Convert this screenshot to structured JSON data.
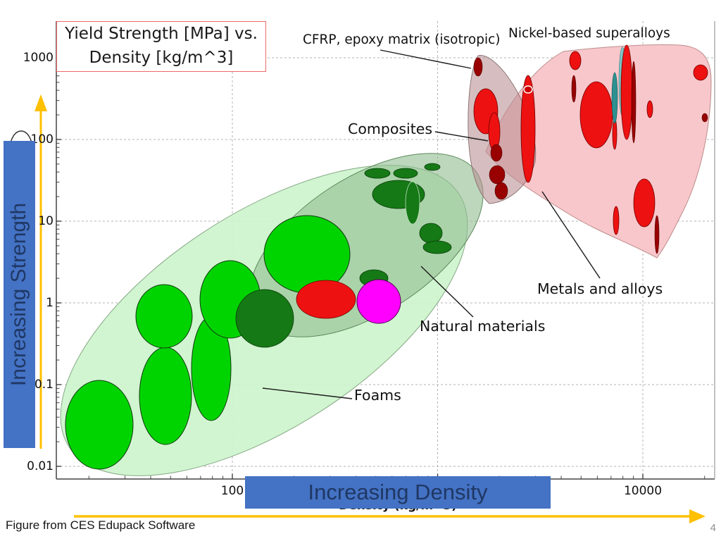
{
  "slide": {
    "title_box": {
      "line1": "Yield Strength [MPa] vs.",
      "line2": "Density [kg/m^3]"
    },
    "banner_vertical": "Increasing Strength",
    "banner_horizontal": "Increasing Density",
    "footer": "Figure from CES Edupack Software",
    "page_number": "4"
  },
  "chart": {
    "x_axis_title": "Density (kg/m^3)",
    "x_ticks": [
      "100",
      "10000"
    ],
    "y_ticks": [
      "1000",
      "100",
      "10",
      "1",
      "0.1",
      "0.01"
    ],
    "annotations": {
      "cfrp": "CFRP, epoxy matrix (isotropic)",
      "nickel": "Nickel-based superalloys",
      "composites": "Composites",
      "metals": "Metals and alloys",
      "natural": "Natural materials",
      "foams": "Foams"
    }
  },
  "colors": {
    "banner_blue": "#4472C4",
    "banner_text": "#1F3864",
    "arrow_yellow": "#FFC000",
    "title_box_border": "#F06A6A",
    "foams_envelope": "#CDF4CC",
    "natural_envelope": "#8FBC8F",
    "metals_envelope": "#F8C4C8",
    "composites_envelope": "#B98F92",
    "bubble_green": "#00D400",
    "bubble_dark_green": "#157915",
    "bubble_red": "#EE1111",
    "bubble_dark_red": "#990000",
    "bubble_teal": "#2E9090",
    "bubble_magenta": "#FF00FF"
  },
  "chart_data": {
    "type": "bubble",
    "title": "Yield Strength [MPa] vs. Density [kg/m^3]",
    "xlabel": "Density (kg/m^3)",
    "ylabel": "Yield Strength (MPa)",
    "x_scale": "log",
    "y_scale": "log",
    "xlim": [
      15,
      22000
    ],
    "ylim": [
      0.007,
      2800
    ],
    "x_tick_values": [
      100,
      10000
    ],
    "y_tick_values": [
      1000,
      100,
      10,
      1,
      0.1,
      0.01
    ],
    "grid": "dashed major gridlines, log minor ticks on axes",
    "legend_position": "none (inline callout labels with leader lines)",
    "regions": [
      {
        "name": "Foams",
        "fill": "#CDF4CC",
        "density_kg_m3": [
          15,
          400
        ],
        "yield_strength_MPa": [
          0.008,
          10
        ],
        "bubble_count": 6,
        "bubble_color": "#00D400"
      },
      {
        "name": "Natural materials",
        "fill": "#8FBC8F",
        "density_kg_m3": [
          200,
          3000
        ],
        "yield_strength_MPa": [
          0.6,
          60
        ],
        "bubble_count": 9,
        "bubble_color": "#157915"
      },
      {
        "name": "Composites",
        "fill": "#B98F92",
        "density_kg_m3": [
          1400,
          3000
        ],
        "yield_strength_MPa": [
          15,
          1100
        ],
        "bubble_count": 6,
        "bubble_color": "#EE1111 / #990000"
      },
      {
        "name": "Metals and alloys",
        "fill": "#F8C4C8",
        "density_kg_m3": [
          1700,
          22000
        ],
        "yield_strength_MPa": [
          4,
          1500
        ],
        "bubble_count": 16,
        "bubble_color": "#EE1111 / #990000 / #2E9090"
      }
    ],
    "highlighted_materials": [
      {
        "name": "CFRP, epoxy matrix (isotropic)",
        "density_kg_m3": [
          1450,
          1700
        ],
        "yield_strength_MPa": [
          600,
          1000
        ]
      },
      {
        "name": "Nickel-based superalloys",
        "density_kg_m3": [
          7000,
          8400
        ],
        "yield_strength_MPa": [
          80,
          1350
        ]
      }
    ],
    "other_bubbles": [
      {
        "color": "#FF00FF",
        "note": "magenta bubble among natural materials",
        "density_kg_m3": [
          450,
          600
        ],
        "yield_strength_MPa": [
          0.55,
          1.9
        ]
      },
      {
        "color": "#EE1111",
        "note": "red bubble among natural materials",
        "density_kg_m3": [
          280,
          520
        ],
        "yield_strength_MPa": [
          0.65,
          1.9
        ]
      }
    ]
  }
}
